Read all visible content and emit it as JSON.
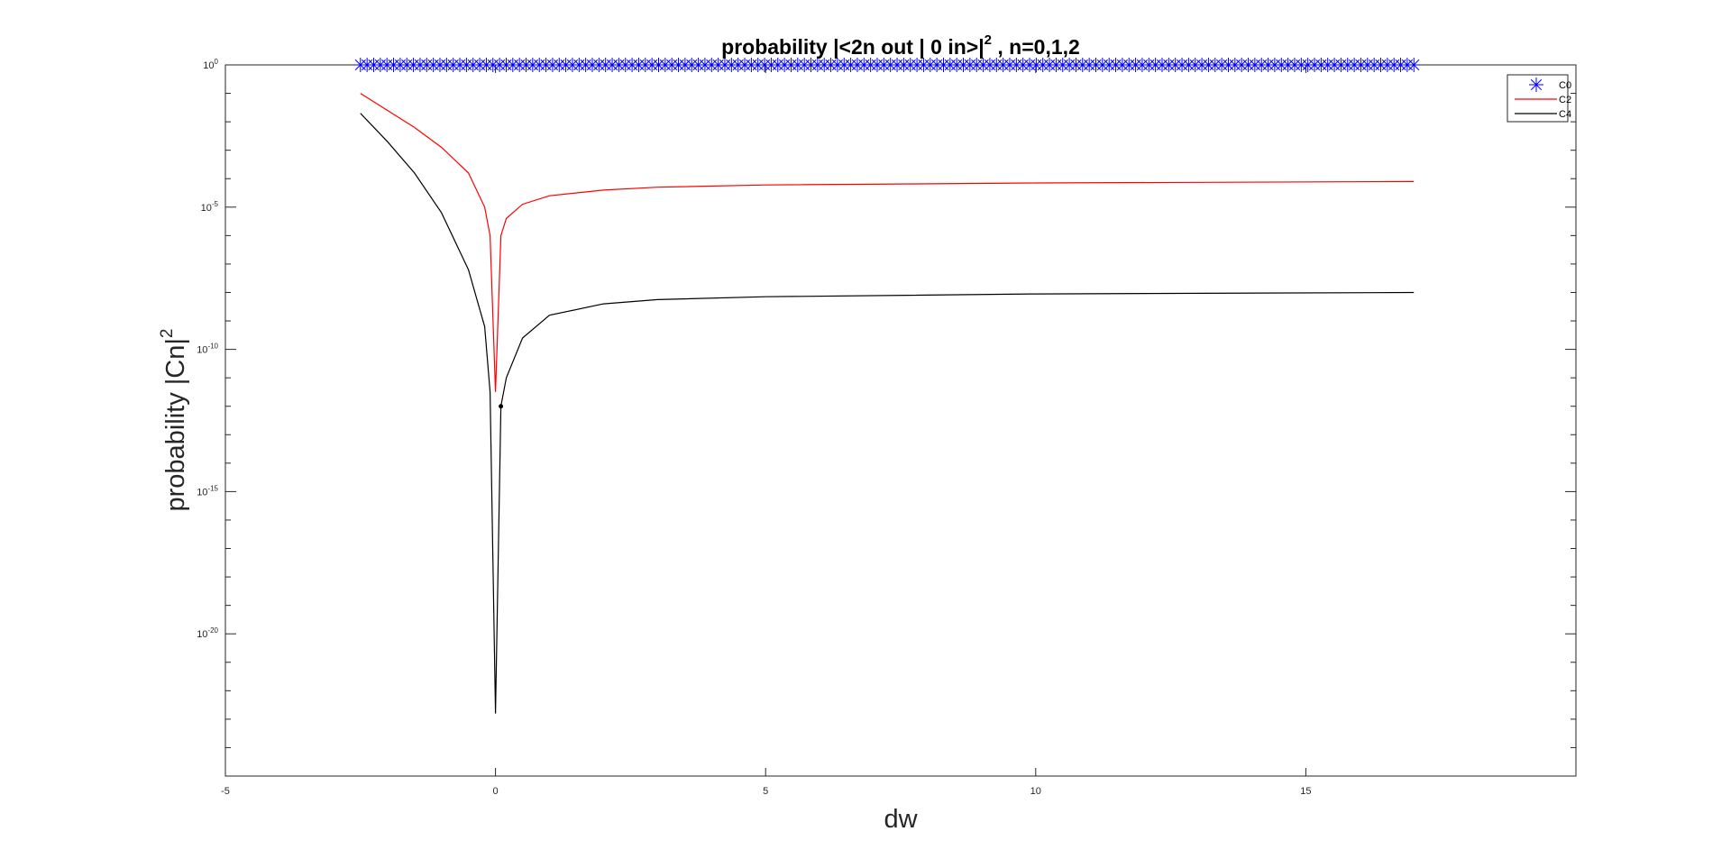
{
  "chart_data": {
    "type": "line",
    "title": "probability |<2n out | 0 in>|",
    "title_sup": "2",
    "title_tail": " , n=0,1,2",
    "xlabel": "dw",
    "ylabel": "probability |Cn|",
    "ylabel_sup": "2",
    "xlim": [
      -5,
      20
    ],
    "ylim_log10": [
      -25,
      0
    ],
    "y_scale": "log",
    "grid": false,
    "legend_position": "top-right",
    "x_ticks": [
      {
        "value": -5,
        "label": "-5"
      },
      {
        "value": 0,
        "label": "0"
      },
      {
        "value": 5,
        "label": "5"
      },
      {
        "value": 10,
        "label": "10"
      },
      {
        "value": 15,
        "label": "15"
      }
    ],
    "y_ticks": [
      {
        "exp": 0,
        "base": "10",
        "sup": "0"
      },
      {
        "exp": -5,
        "base": "10",
        "sup": "-5"
      },
      {
        "exp": -10,
        "base": "10",
        "sup": "-10"
      },
      {
        "exp": -15,
        "base": "10",
        "sup": "-15"
      },
      {
        "exp": -20,
        "base": "10",
        "sup": "-20"
      }
    ],
    "series": [
      {
        "name": "C0",
        "color": "#0000ff",
        "marker": "asterisk",
        "x_range": [
          -2.5,
          17
        ],
        "marker_count": 160,
        "log10_y": 0
      },
      {
        "name": "C2",
        "color": "#ff0000",
        "marker": "none",
        "points": [
          [
            -2.5,
            -1.0
          ],
          [
            -2.0,
            -1.6
          ],
          [
            -1.5,
            -2.2
          ],
          [
            -1.0,
            -2.9
          ],
          [
            -0.5,
            -3.8
          ],
          [
            -0.2,
            -5.0
          ],
          [
            -0.1,
            -6.0
          ],
          [
            0.0,
            -11.5
          ],
          [
            0.1,
            -6.0
          ],
          [
            0.2,
            -5.4
          ],
          [
            0.5,
            -4.9
          ],
          [
            1.0,
            -4.6
          ],
          [
            2.0,
            -4.4
          ],
          [
            3.0,
            -4.3
          ],
          [
            5.0,
            -4.22
          ],
          [
            10.0,
            -4.15
          ],
          [
            17.0,
            -4.1
          ]
        ]
      },
      {
        "name": "C4",
        "color": "#000000",
        "marker": "none",
        "points": [
          [
            -2.5,
            -1.7
          ],
          [
            -2.0,
            -2.7
          ],
          [
            -1.5,
            -3.8
          ],
          [
            -1.0,
            -5.2
          ],
          [
            -0.5,
            -7.2
          ],
          [
            -0.2,
            -9.2
          ],
          [
            -0.1,
            -11.5
          ],
          [
            0.0,
            -22.8
          ],
          [
            0.1,
            -12.0
          ],
          [
            0.2,
            -11.0
          ],
          [
            0.5,
            -9.6
          ],
          [
            1.0,
            -8.8
          ],
          [
            2.0,
            -8.4
          ],
          [
            3.0,
            -8.25
          ],
          [
            5.0,
            -8.15
          ],
          [
            10.0,
            -8.05
          ],
          [
            17.0,
            -8.0
          ]
        ]
      }
    ]
  }
}
